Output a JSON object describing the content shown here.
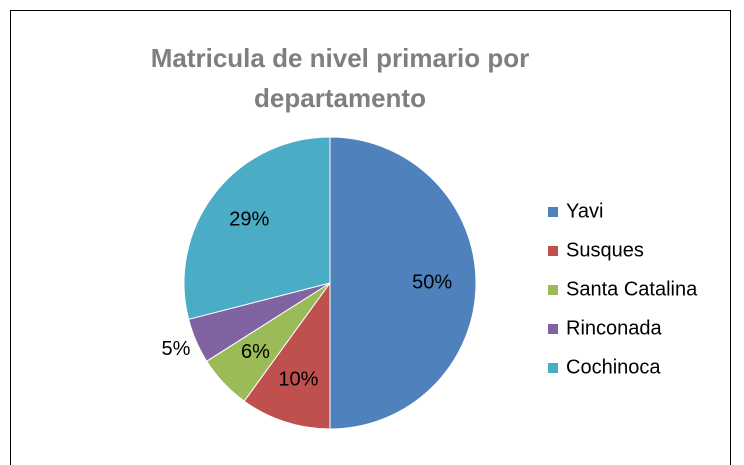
{
  "chart_data": {
    "type": "pie",
    "title": "Matricula de nivel primario por departamento",
    "categories": [
      "Yavi",
      "Susques",
      "Santa Catalina",
      "Rinconada",
      "Cochinoca"
    ],
    "values": [
      50,
      10,
      6,
      5,
      29
    ],
    "value_labels": [
      "50%",
      "10%",
      "6%",
      "5%",
      "29%"
    ],
    "colors": [
      "#4f81bd",
      "#c0504d",
      "#9bbb59",
      "#8064a2",
      "#4bacc6"
    ],
    "legend": "right"
  }
}
